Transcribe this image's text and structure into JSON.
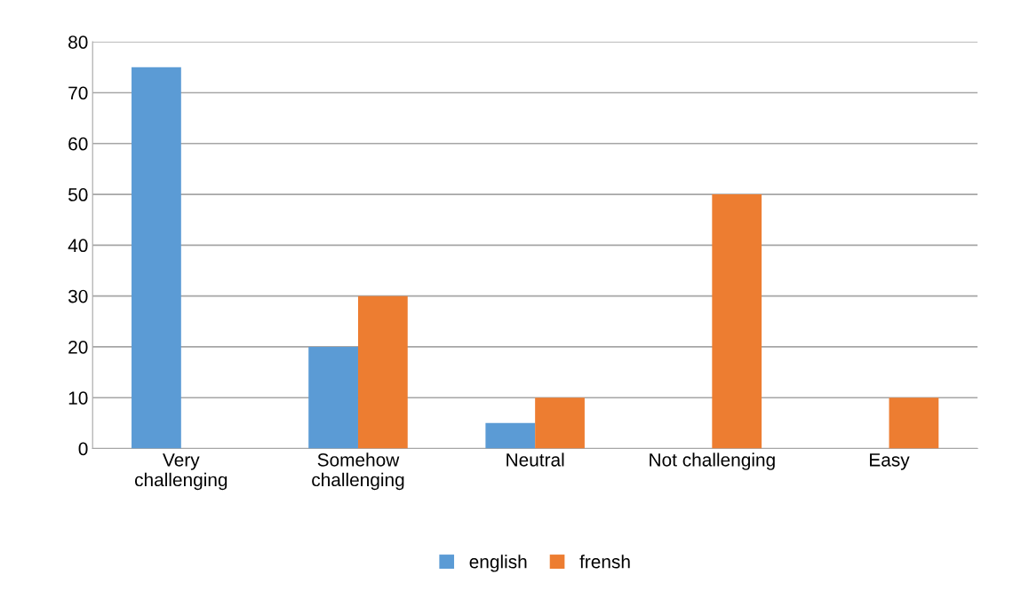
{
  "chart_data": {
    "type": "bar",
    "categories": [
      "Very\nchallenging",
      "Somehow\nchallenging",
      "Neutral",
      "Not challenging",
      "Easy"
    ],
    "series": [
      {
        "name": "english",
        "color": "#5b9bd5",
        "values": [
          75,
          20,
          5,
          0,
          0
        ]
      },
      {
        "name": "frensh",
        "color": "#ed7d31",
        "values": [
          0,
          30,
          10,
          50,
          10
        ]
      }
    ],
    "ylim": [
      0,
      80
    ],
    "yticks": [
      0,
      10,
      20,
      30,
      40,
      50,
      60,
      70,
      80
    ],
    "grid": "y",
    "legend": "bottom"
  }
}
